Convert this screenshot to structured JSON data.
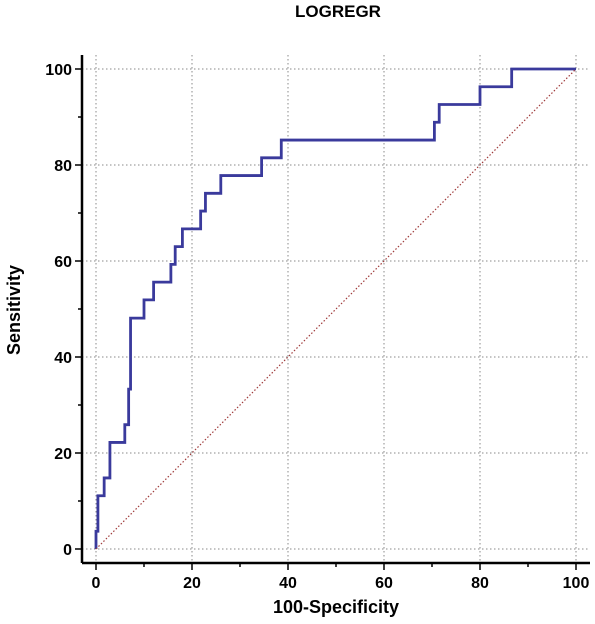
{
  "chart_data": {
    "type": "line",
    "title": "LOGREGR",
    "xlabel": "100-Specificity",
    "ylabel": "Sensitivity",
    "xlim": [
      0,
      100
    ],
    "ylim": [
      0,
      100
    ],
    "xticks": [
      0,
      20,
      40,
      60,
      80,
      100
    ],
    "yticks": [
      0,
      20,
      40,
      60,
      80,
      100
    ],
    "grid": true,
    "series": [
      {
        "values_x": [
          0,
          0,
          0.4,
          0.4,
          1.7,
          1.7,
          2.9,
          2.9,
          6,
          6,
          6.8,
          6.8,
          7.2,
          7.2,
          10,
          10,
          12,
          12,
          15.6,
          15.6,
          16.5,
          16.5,
          18,
          18,
          21.8,
          21.8,
          22.8,
          22.8,
          26,
          26,
          34.5,
          34.5,
          38.6,
          38.6,
          70.5,
          70.5,
          71.5,
          71.5,
          80,
          80,
          86.6,
          86.6,
          100
        ],
        "values_y": [
          0,
          3.7,
          3.7,
          11.1,
          11.1,
          14.8,
          14.8,
          22.2,
          22.2,
          25.9,
          25.9,
          33.3,
          33.3,
          48.1,
          48.1,
          51.9,
          51.9,
          55.6,
          55.6,
          59.3,
          59.3,
          63,
          63,
          66.7,
          66.7,
          70.4,
          70.4,
          74.1,
          74.1,
          77.8,
          77.8,
          81.5,
          81.5,
          85.2,
          85.2,
          88.9,
          88.9,
          92.6,
          92.6,
          96.3,
          96.3,
          100,
          100
        ],
        "color": "#3a3a9c"
      },
      {
        "values_x": [
          0,
          100
        ],
        "values_y": [
          0,
          100
        ],
        "color": "#a03c3c",
        "style": "dotted"
      }
    ]
  }
}
